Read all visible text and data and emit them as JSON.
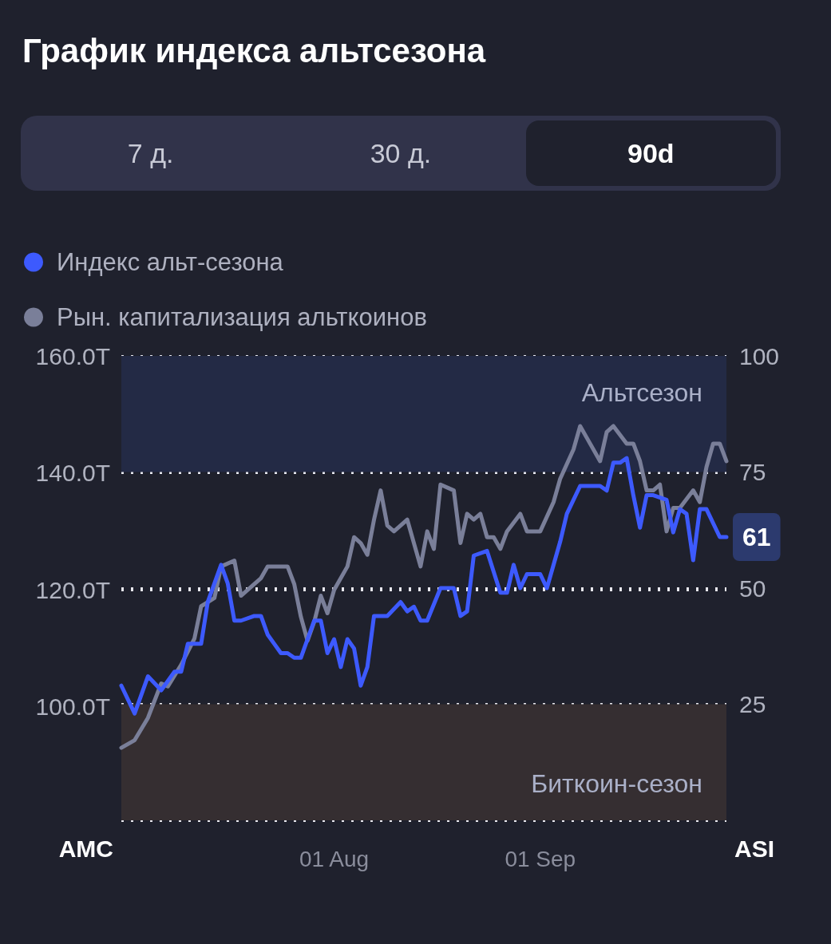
{
  "chart_data": {
    "type": "line",
    "title": "График индекса альтсезона",
    "annotations": [
      "7 д.",
      "30 д.",
      "90d"
    ],
    "ylabel": "AMC",
    "y2label": "ASI",
    "xlim": [
      "--06-30",
      "--09-29"
    ],
    "xticks": [
      {
        "value": "--08-01",
        "label": "01 Aug"
      },
      {
        "value": "--09-01",
        "label": "01 Sep"
      }
    ],
    "ylim": [
      80.6,
      160
    ],
    "yticks": [
      {
        "value": 80.6,
        "label": null
      },
      {
        "value": 100,
        "label": "100.0T"
      },
      {
        "value": 120,
        "label": "120.0T"
      },
      {
        "value": 140,
        "label": "140.0T"
      },
      {
        "value": 160,
        "label": "160.0T"
      }
    ],
    "y2lim": [
      0,
      100
    ],
    "y2ticks": [
      {
        "value": 0,
        "label": null
      },
      25,
      50,
      75,
      100
    ],
    "grid": "y",
    "legend": "top left",
    "marker": "none",
    "line_style": "solid",
    "bands": [
      {
        "axis": "y2",
        "from": 75,
        "to": 100,
        "label": "Альтсезон",
        "color": "#232a45"
      },
      {
        "axis": "y2",
        "from": 0,
        "to": 25,
        "label": "Биткоин-сезон",
        "color": "#352e31"
      }
    ],
    "series": [
      {
        "name": "Индекс альт-сезона",
        "color": "#3d5afe",
        "axis": "y2",
        "x": [
          "--06-30",
          "--07-02",
          "--07-04",
          "--07-06",
          "--07-08",
          "--07-09",
          "--07-10",
          "--07-12",
          "--07-13",
          "--07-15",
          "--07-16",
          "--07-17",
          "--07-18",
          "--07-20",
          "--07-21",
          "--07-22",
          "--07-23",
          "--07-24",
          "--07-25",
          "--07-26",
          "--07-27",
          "--07-29",
          "--07-30",
          "--07-31",
          "--08-01",
          "--08-02",
          "--08-03",
          "--08-04",
          "--08-05",
          "--08-06",
          "--08-07",
          "--08-09",
          "--08-11",
          "--08-12",
          "--08-13",
          "--08-14",
          "--08-15",
          "--08-17",
          "--08-19",
          "--08-20",
          "--08-21",
          "--08-22",
          "--08-24",
          "--08-26",
          "--08-27",
          "--08-28",
          "--08-29",
          "--08-30",
          "--09-01",
          "--09-02",
          "--09-04",
          "--09-05",
          "--09-07",
          "--09-10",
          "--09-11",
          "--09-12",
          "--09-13",
          "--09-14",
          "--09-15",
          "--09-16",
          "--09-17",
          "--09-18",
          "--09-20",
          "--09-21",
          "--09-22",
          "--09-23",
          "--09-24",
          "--09-25",
          "--09-26",
          "--09-28",
          "--09-29"
        ],
        "values": [
          29,
          23,
          31,
          28,
          32,
          32,
          38,
          38,
          47,
          55,
          51,
          43,
          43,
          44,
          44,
          40,
          38,
          36,
          36,
          35,
          35,
          43,
          43,
          36,
          39,
          33,
          39,
          37,
          29,
          33,
          44,
          44,
          47,
          45,
          46,
          43,
          43,
          50,
          50,
          44,
          45,
          57,
          58,
          49,
          49,
          55,
          50,
          53,
          53,
          50,
          60,
          66,
          72,
          72,
          71,
          77,
          77,
          78,
          70,
          63,
          70,
          70,
          69,
          62,
          67,
          66,
          56,
          67,
          67,
          61,
          61
        ],
        "value_labels": [
          null,
          null,
          null,
          null,
          null,
          null,
          null,
          null,
          null,
          null,
          null,
          null,
          null,
          null,
          null,
          null,
          null,
          null,
          null,
          null,
          null,
          null,
          null,
          null,
          null,
          null,
          null,
          null,
          null,
          null,
          null,
          null,
          null,
          null,
          null,
          null,
          null,
          null,
          null,
          null,
          null,
          null,
          null,
          null,
          null,
          null,
          null,
          null,
          null,
          null,
          null,
          null,
          null,
          null,
          null,
          null,
          null,
          null,
          null,
          null,
          null,
          null,
          null,
          null,
          null,
          null,
          null,
          null,
          null,
          null,
          "61"
        ]
      },
      {
        "name": "Рын. капитализация альткоинов",
        "color": "#7a7f99",
        "x": [
          "--06-30",
          "--07-02",
          "--07-04",
          "--07-06",
          "--07-07",
          "--07-09",
          "--07-11",
          "--07-12",
          "--07-14",
          "--07-15",
          "--07-17",
          "--07-18",
          "--07-20",
          "--07-21",
          "--07-22",
          "--07-25",
          "--07-26",
          "--07-27",
          "--07-28",
          "--07-29",
          "--07-30",
          "--07-31",
          "--08-01",
          "--08-03",
          "--08-04",
          "--08-05",
          "--08-06",
          "--08-07",
          "--08-08",
          "--08-09",
          "--08-10",
          "--08-12",
          "--08-13",
          "--08-14",
          "--08-15",
          "--08-16",
          "--08-17",
          "--08-19",
          "--08-20",
          "--08-21",
          "--08-22",
          "--08-23",
          "--08-24",
          "--08-25",
          "--08-26",
          "--08-27",
          "--08-29",
          "--08-30",
          "--09-01",
          "--09-03",
          "--09-04",
          "--09-06",
          "--09-07",
          "--09-08",
          "--09-10",
          "--09-11",
          "--09-12",
          "--09-14",
          "--09-15",
          "--09-16",
          "--09-17",
          "--09-18",
          "--09-19",
          "--09-20",
          "--09-21",
          "--09-22",
          "--09-24",
          "--09-25",
          "--09-26",
          "--09-27",
          "--09-28",
          "--09-29"
        ],
        "values": [
          93.0,
          94.3,
          98.1,
          104.0,
          103.5,
          107.2,
          111.7,
          117.2,
          118.6,
          124,
          125,
          119,
          121,
          122,
          124,
          124,
          121,
          115.4,
          111.3,
          114.5,
          119,
          116,
          120,
          124,
          129,
          128,
          126,
          132,
          137,
          131,
          130,
          132,
          128,
          124,
          130,
          127,
          138,
          137,
          128,
          133,
          132,
          133,
          129,
          129,
          127,
          130,
          133,
          130,
          130,
          135,
          139,
          144,
          148,
          146,
          142,
          147,
          148,
          145,
          145,
          142,
          137,
          137,
          138,
          130,
          134,
          134,
          137,
          135,
          141,
          145,
          145,
          142
        ]
      }
    ]
  }
}
